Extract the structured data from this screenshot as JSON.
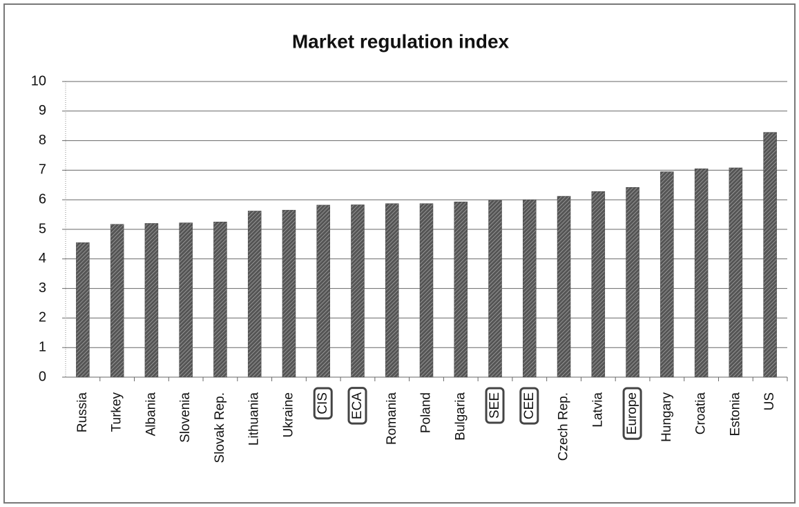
{
  "chart_data": {
    "type": "bar",
    "title": "Market regulation index",
    "categories": [
      "Russia",
      "Turkey",
      "Albania",
      "Slovenia",
      "Slovak Rep.",
      "Lithuania",
      "Ukraine",
      "CIS",
      "ECA",
      "Romania",
      "Poland",
      "Bulgaria",
      "SEE",
      "CEE",
      "Czech Rep.",
      "Latvia",
      "Europe",
      "Hungary",
      "Croatia",
      "Estonia",
      "US"
    ],
    "values": [
      4.55,
      5.17,
      5.2,
      5.22,
      5.25,
      5.62,
      5.65,
      5.82,
      5.83,
      5.87,
      5.87,
      5.93,
      5.98,
      6.0,
      6.12,
      6.28,
      6.42,
      6.95,
      7.05,
      7.08,
      8.28
    ],
    "color": "#555555",
    "highlighted": [
      7,
      8,
      12,
      13,
      16
    ],
    "ylim": [
      0,
      10
    ],
    "yticks": [
      0,
      1,
      2,
      3,
      4,
      5,
      6,
      7,
      8,
      9,
      10
    ],
    "grid": true
  }
}
